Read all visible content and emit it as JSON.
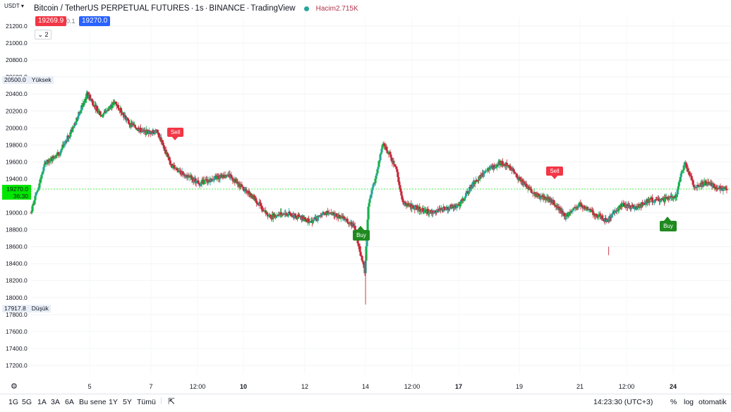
{
  "header": {
    "symbol": "Bitcoin / TetherUS PERPETUAL FUTURES",
    "interval": "1s",
    "exchange": "BINANCE",
    "source": "TradingView",
    "volume_label": "Hacim",
    "volume_value": "2.715K",
    "bid": "19269.9",
    "spread": "0.1",
    "ask": "19270.0",
    "indicator_count": "2",
    "unit": "USDT"
  },
  "price_axis": {
    "labels": [
      "21200.0",
      "21000.0",
      "20800.0",
      "20600.0",
      "20500.0",
      "20400.0",
      "20200.0",
      "20000.0",
      "19800.0",
      "19600.0",
      "19400.0",
      "19270.0",
      "19000.0",
      "18800.0",
      "18600.0",
      "18400.0",
      "18200.0",
      "18000.0",
      "17917.8",
      "17800.0",
      "17600.0",
      "17400.0",
      "17200.0"
    ],
    "high_label": "Yüksek",
    "high_value": "20500.0",
    "low_label": "Düşük",
    "low_value": "17917.8",
    "current_value": "19270.0",
    "countdown": "36:30"
  },
  "time_axis": {
    "labels": [
      "5",
      "7",
      "12:00",
      "10",
      "12",
      "14",
      "12:00",
      "17",
      "19",
      "21",
      "12:00",
      "24"
    ],
    "bold_labels": [
      "10",
      "17",
      "24"
    ]
  },
  "signals": {
    "sell_1": "Sell",
    "sell_2": "Sell",
    "buy_1": "Buy",
    "buy_2": "Buy"
  },
  "bottom_bar": {
    "ranges": [
      "1G",
      "5G",
      "1A",
      "3A",
      "6A",
      "Bu sene",
      "1Y",
      "5Y",
      "Tümü"
    ],
    "time": "14:23:30 (UTC+3)",
    "percent": "%",
    "log": "log",
    "auto": "otomatik"
  },
  "colors": {
    "up": "#26a69a",
    "up_bright": "#16b24b",
    "down": "#c62838",
    "sell": "#f23645",
    "buy": "#1f8a1f",
    "bid_box": "#f23645",
    "ask_box": "#2962ff",
    "current_price_line": "#00e600"
  },
  "chart_data": {
    "type": "candlestick",
    "ylim": [
      17100,
      21300
    ],
    "anchors": [
      [
        0,
        19000
      ],
      [
        20,
        19580
      ],
      [
        40,
        19700
      ],
      [
        60,
        20000
      ],
      [
        80,
        20400
      ],
      [
        100,
        20150
      ],
      [
        120,
        20300
      ],
      [
        140,
        20050
      ],
      [
        160,
        19950
      ],
      [
        180,
        19950
      ],
      [
        200,
        19550
      ],
      [
        220,
        19450
      ],
      [
        240,
        19350
      ],
      [
        260,
        19400
      ],
      [
        280,
        19450
      ],
      [
        300,
        19300
      ],
      [
        320,
        19150
      ],
      [
        340,
        18950
      ],
      [
        360,
        19000
      ],
      [
        380,
        18950
      ],
      [
        400,
        18900
      ],
      [
        420,
        19000
      ],
      [
        440,
        18950
      ],
      [
        460,
        18850
      ],
      [
        475,
        18300
      ],
      [
        480,
        19100
      ],
      [
        490,
        19400
      ],
      [
        500,
        19800
      ],
      [
        510,
        19700
      ],
      [
        520,
        19500
      ],
      [
        530,
        19100
      ],
      [
        550,
        19050
      ],
      [
        570,
        19000
      ],
      [
        590,
        19050
      ],
      [
        610,
        19100
      ],
      [
        630,
        19350
      ],
      [
        650,
        19500
      ],
      [
        670,
        19600
      ],
      [
        680,
        19550
      ],
      [
        700,
        19350
      ],
      [
        720,
        19200
      ],
      [
        740,
        19150
      ],
      [
        760,
        18950
      ],
      [
        780,
        19100
      ],
      [
        800,
        19000
      ],
      [
        820,
        18900
      ],
      [
        840,
        19100
      ],
      [
        860,
        19050
      ],
      [
        880,
        19150
      ],
      [
        900,
        19150
      ],
      [
        918,
        19200
      ],
      [
        930,
        19600
      ],
      [
        945,
        19300
      ],
      [
        960,
        19350
      ],
      [
        975,
        19300
      ],
      [
        990,
        19270
      ]
    ]
  }
}
